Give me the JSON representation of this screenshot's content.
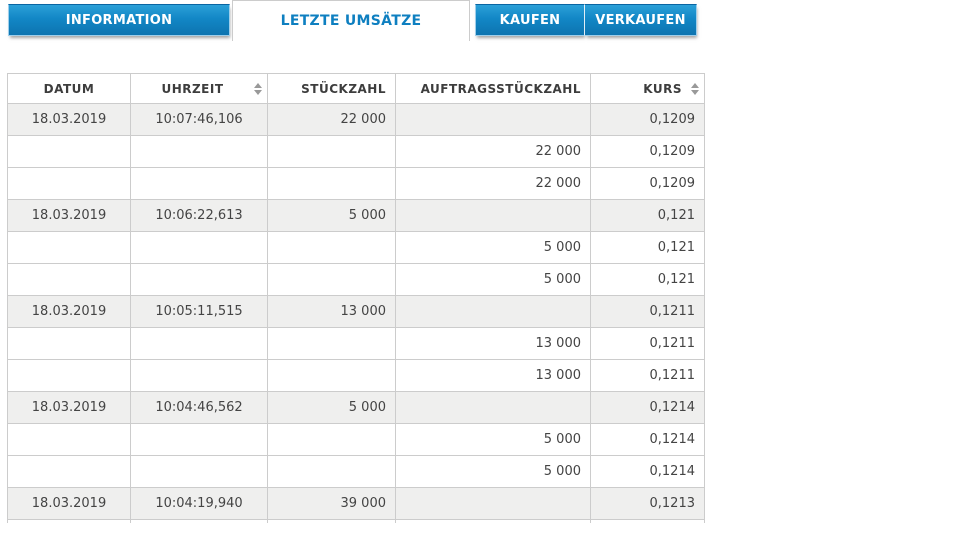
{
  "tabs": {
    "items": [
      {
        "id": "information",
        "label": "INFORMATION",
        "active": false
      },
      {
        "id": "letzte-umsaetze",
        "label": "LETZTE UMSÄTZE",
        "active": true
      },
      {
        "id": "kaufen",
        "label": "KAUFEN",
        "active": false
      },
      {
        "id": "verkaufen",
        "label": "VERKAUFEN",
        "active": false
      }
    ]
  },
  "table": {
    "columns": [
      {
        "key": "datum",
        "label": "DATUM",
        "align": "center",
        "sortable": false
      },
      {
        "key": "uhrzeit",
        "label": "UHRZEIT",
        "align": "center",
        "sortable": true
      },
      {
        "key": "stueckzahl",
        "label": "STÜCKZAHL",
        "align": "right",
        "sortable": false
      },
      {
        "key": "auftragsstueckzahl",
        "label": "AUFTRAGSSTÜCKZAHL",
        "align": "right",
        "sortable": false
      },
      {
        "key": "kurs",
        "label": "KURS",
        "align": "right",
        "sortable": true
      }
    ],
    "rows": [
      {
        "shaded": true,
        "cells": [
          "18.03.2019",
          "10:07:46,106",
          "22 000",
          "",
          "0,1209"
        ]
      },
      {
        "shaded": false,
        "cells": [
          "",
          "",
          "",
          "22 000",
          "0,1209"
        ]
      },
      {
        "shaded": false,
        "cells": [
          "",
          "",
          "",
          "22 000",
          "0,1209"
        ]
      },
      {
        "shaded": true,
        "cells": [
          "18.03.2019",
          "10:06:22,613",
          "5 000",
          "",
          "0,121"
        ]
      },
      {
        "shaded": false,
        "cells": [
          "",
          "",
          "",
          "5 000",
          "0,121"
        ]
      },
      {
        "shaded": false,
        "cells": [
          "",
          "",
          "",
          "5 000",
          "0,121"
        ]
      },
      {
        "shaded": true,
        "cells": [
          "18.03.2019",
          "10:05:11,515",
          "13 000",
          "",
          "0,1211"
        ]
      },
      {
        "shaded": false,
        "cells": [
          "",
          "",
          "",
          "13 000",
          "0,1211"
        ]
      },
      {
        "shaded": false,
        "cells": [
          "",
          "",
          "",
          "13 000",
          "0,1211"
        ]
      },
      {
        "shaded": true,
        "cells": [
          "18.03.2019",
          "10:04:46,562",
          "5 000",
          "",
          "0,1214"
        ]
      },
      {
        "shaded": false,
        "cells": [
          "",
          "",
          "",
          "5 000",
          "0,1214"
        ]
      },
      {
        "shaded": false,
        "cells": [
          "",
          "",
          "",
          "5 000",
          "0,1214"
        ]
      },
      {
        "shaded": true,
        "cells": [
          "18.03.2019",
          "10:04:19,940",
          "39 000",
          "",
          "0,1213"
        ]
      },
      {
        "shaded": false,
        "cells": [
          "",
          "",
          "",
          "",
          ""
        ]
      }
    ]
  },
  "colors": {
    "tab_blue": "#1287c6",
    "tab_blue_light": "#2ba0d8",
    "tab_blue_dark": "#0d74b0",
    "active_tab_text": "#0e7fc0",
    "border": "#cccccc",
    "row_shaded": "#efefee",
    "header_text": "#3d3d3d",
    "body_text": "#444444",
    "sort_arrow": "#999999"
  },
  "icons": {
    "sort": "sort-arrows-icon"
  }
}
